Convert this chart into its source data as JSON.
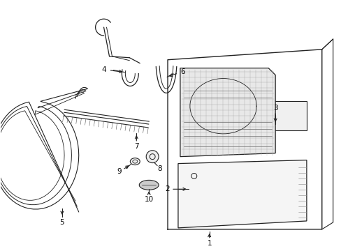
{
  "background_color": "#ffffff",
  "line_color": "#222222",
  "label_color": "#000000",
  "fig_width": 4.89,
  "fig_height": 3.6,
  "dpi": 100,
  "label_fontsize": 7.5
}
